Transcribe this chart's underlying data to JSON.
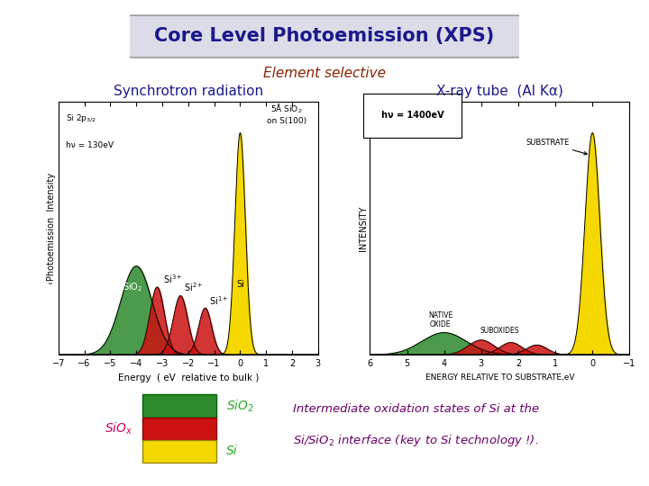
{
  "title": "Core Level Photoemission (XPS)",
  "subtitle": "Element selective",
  "left_label": "Synchrotron radiation",
  "right_label": "X-ray tube  (Al Kα)",
  "left_annot1": "Si 2p$_{3/2}$",
  "left_annot2": "hν = 130eV",
  "left_annot3": "5Å SiO$_2$\non S(100)",
  "left_xlabel": "Energy  ( eV  relative to bulk )",
  "left_ylabel": "‹Photoemission  Intensity",
  "right_annot1": "hν = 1400eV",
  "right_xlabel": "ENERGY RELATIVE TO SUBSTRATE,eV",
  "right_ylabel": "INTENSITY",
  "right_substrate": "SUBSTRATE",
  "right_native": "NATIVE\nOXIDE",
  "right_suboxides": "SUBOXIDES",
  "legend_sio2": "SiO$_2$",
  "legend_siox": "SiO$_x$",
  "legend_si": "Si",
  "bottom_text1": "Intermediate oxidation states of Si at the",
  "bottom_text2": "Si/SiO$_2$ interface (key to Si technology !).",
  "title_text_color": "#1a1a8c",
  "subtitle_color": "#8b2200",
  "left_label_color": "#1a1a8c",
  "right_label_color": "#1a1a8c",
  "bottom_text_color": "#6a006a",
  "color_yellow": "#f5d800",
  "color_green": "#2d8a2d",
  "color_red": "#cc1111"
}
